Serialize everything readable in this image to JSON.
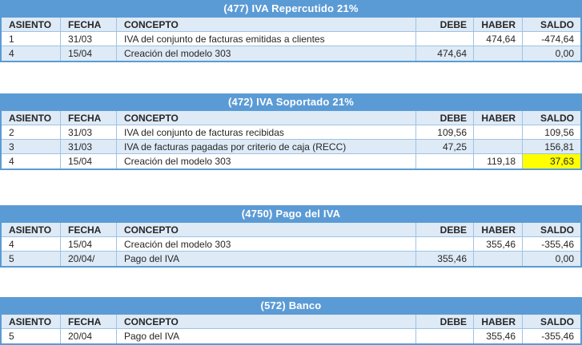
{
  "colors": {
    "title_bg": "#5B9BD5",
    "title_text": "#FFFFFF",
    "header_bg": "#DEEAF6",
    "band_bg": "#DEEAF6",
    "border_inner": "#9DC3E6",
    "border_outer": "#5B9BD5",
    "highlight_bg": "#FFFF00",
    "body_text": "#262626"
  },
  "columns": [
    "ASIENTO",
    "FECHA",
    "CONCEPTO",
    "DEBE",
    "HABER",
    "SALDO"
  ],
  "tables": [
    {
      "title": "(477) IVA Repercutido 21%",
      "rows": [
        {
          "asiento": "1",
          "fecha": "31/03",
          "concepto": "IVA del conjunto de facturas emitidas a clientes",
          "debe": "",
          "haber": "474,64",
          "saldo": "-474,64"
        },
        {
          "asiento": "4",
          "fecha": "15/04",
          "concepto": "Creación del modelo 303",
          "debe": "474,64",
          "haber": "",
          "saldo": "0,00"
        }
      ]
    },
    {
      "title": "(472) IVA Soportado 21%",
      "rows": [
        {
          "asiento": "2",
          "fecha": "31/03",
          "concepto": "IVA del conjunto de facturas recibidas",
          "debe": "109,56",
          "haber": "",
          "saldo": "109,56"
        },
        {
          "asiento": "3",
          "fecha": "31/03",
          "concepto": "IVA de facturas pagadas por criterio de caja (RECC)",
          "debe": "47,25",
          "haber": "",
          "saldo": "156,81"
        },
        {
          "asiento": "4",
          "fecha": "15/04",
          "concepto": "Creación del modelo 303",
          "debe": "",
          "haber": "119,18",
          "saldo": "37,63",
          "saldo_highlight": true
        }
      ]
    },
    {
      "title": "(4750) Pago del IVA",
      "rows": [
        {
          "asiento": "4",
          "fecha": "15/04",
          "concepto": "Creación del modelo 303",
          "debe": "",
          "haber": "355,46",
          "saldo": "-355,46"
        },
        {
          "asiento": "5",
          "fecha": "20/04/",
          "concepto": "Pago del IVA",
          "debe": "355,46",
          "haber": "",
          "saldo": "0,00"
        }
      ]
    },
    {
      "title": "(572) Banco",
      "rows": [
        {
          "asiento": "5",
          "fecha": "20/04",
          "concepto": "Pago del IVA",
          "debe": "",
          "haber": "355,46",
          "saldo": "-355,46"
        }
      ]
    }
  ]
}
